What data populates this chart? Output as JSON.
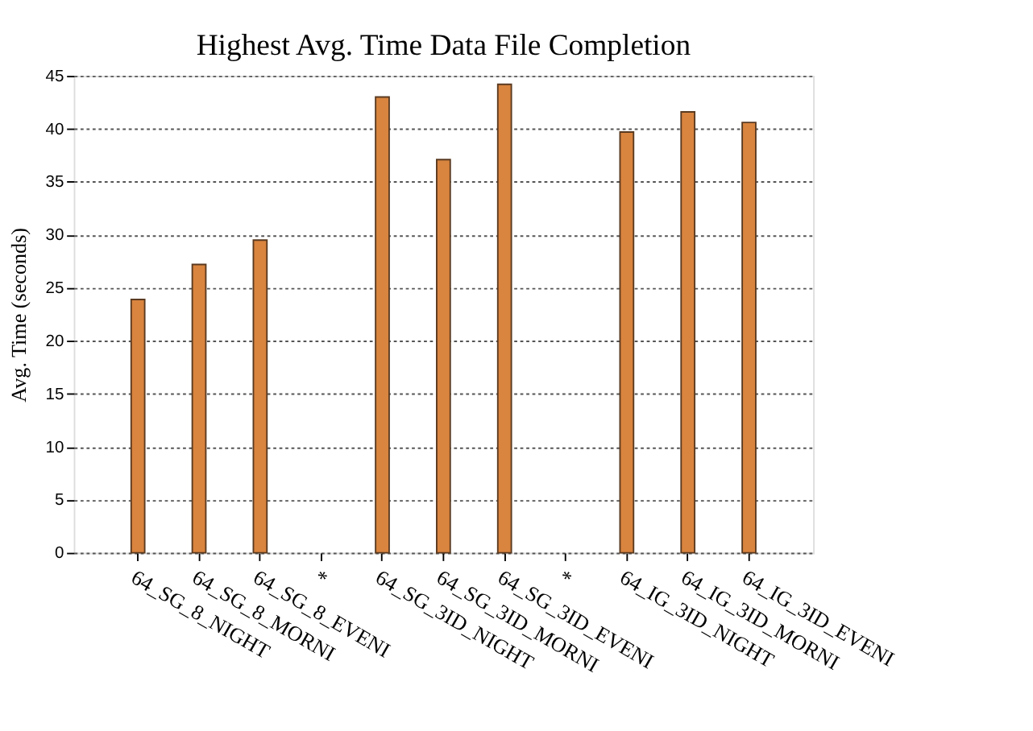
{
  "chart_data": {
    "type": "bar",
    "title": "Highest Avg. Time Data File Completion",
    "ylabel": "Avg. Time (seconds)",
    "categories": [
      "64_SG_8_NIGHT",
      "64_SG_8_MORNI",
      "64_SG_8_EVENI",
      "*",
      "64_SG_3ID_NIGHT",
      "64_SG_3ID_MORNI",
      "64_SG_3ID_EVENI",
      "*",
      "64_IG_3ID_NIGHT",
      "64_IG_3ID_MORNI",
      "64_IG_3ID_EVENI"
    ],
    "values": [
      23.9,
      27.2,
      29.5,
      null,
      43.0,
      37.1,
      44.2,
      null,
      39.7,
      41.6,
      40.6
    ],
    "color": "#d9843f",
    "ylim": [
      0,
      45
    ],
    "yticks": [
      0,
      5,
      10,
      15,
      20,
      25,
      30,
      35,
      40,
      45
    ],
    "grid": "y"
  }
}
